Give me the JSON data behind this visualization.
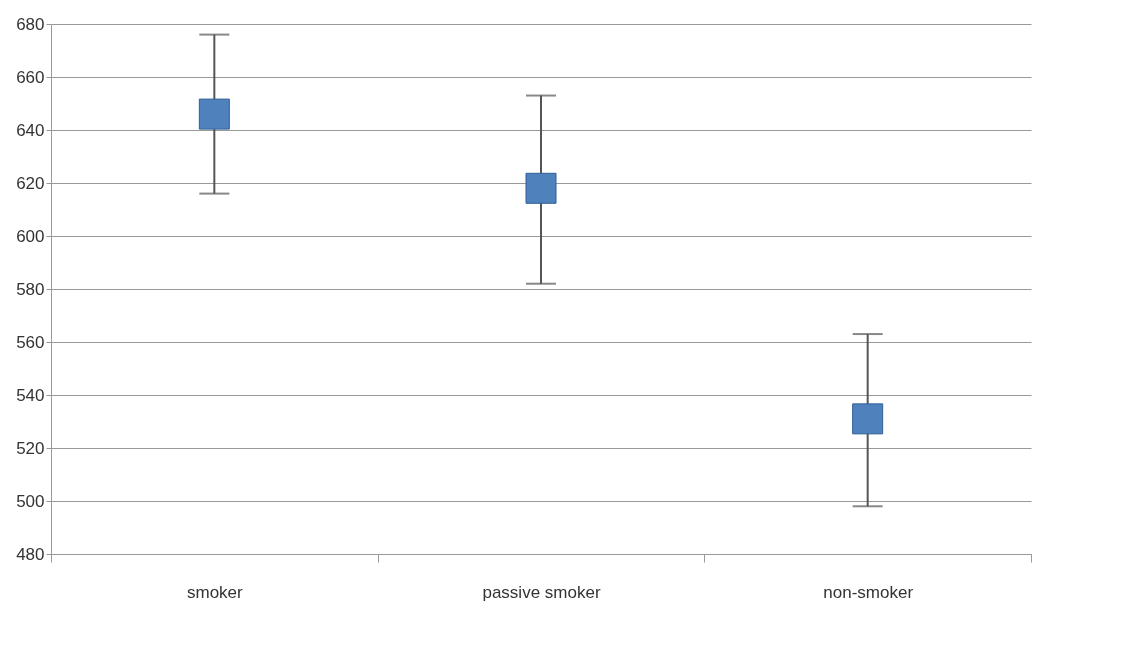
{
  "chart_data": {
    "type": "scatter",
    "categories": [
      "smoker",
      "passive smoker",
      "non-smoker"
    ],
    "series": [
      {
        "color": "#4f81bd",
        "values": [
          646,
          618,
          531
        ],
        "errors": [
          [
            616,
            676
          ],
          [
            582,
            653
          ],
          [
            498,
            563
          ]
        ]
      }
    ],
    "ylim": [
      480,
      680
    ],
    "yticks": [
      480,
      500,
      520,
      540,
      560,
      580,
      600,
      620,
      640,
      660,
      680
    ],
    "grid": "y",
    "marker": "square"
  }
}
